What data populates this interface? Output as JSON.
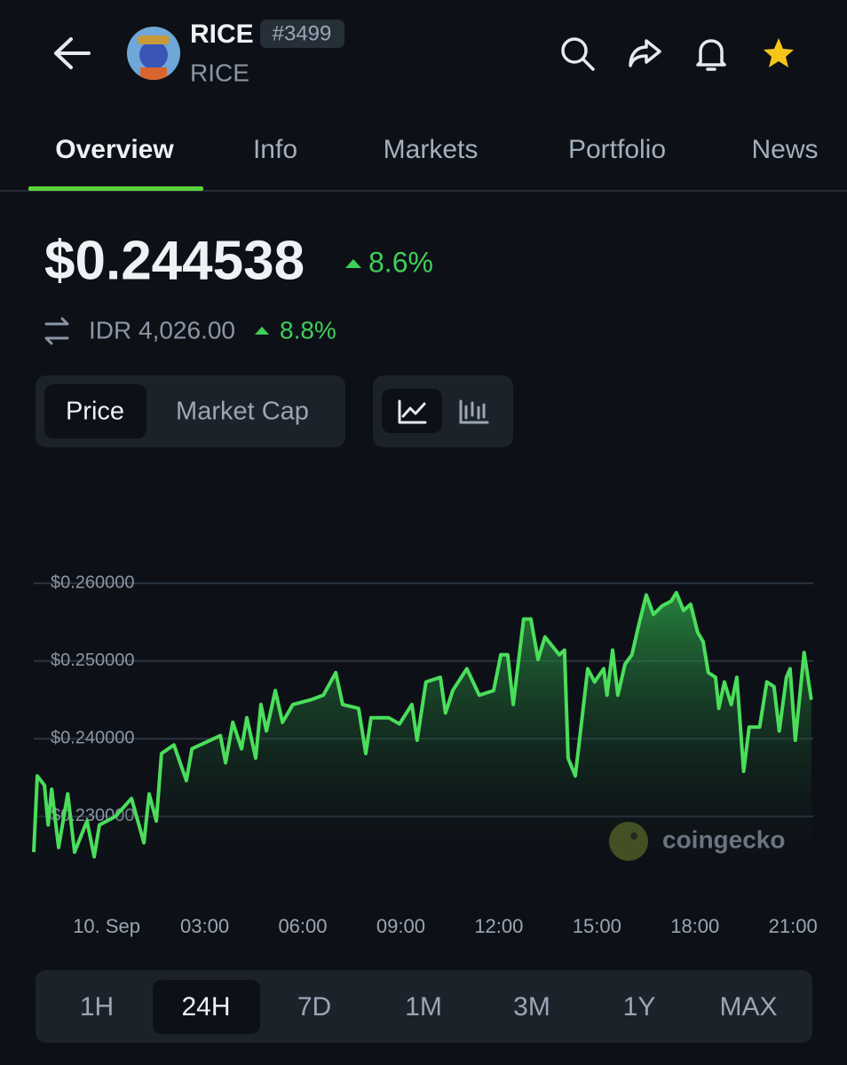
{
  "header": {
    "title": "RICE",
    "rank": "#3499",
    "symbol": "RICE"
  },
  "tabs": [
    "Overview",
    "Info",
    "Markets",
    "Portfolio",
    "News"
  ],
  "price": {
    "usd": "$0.244538",
    "usd_change": "8.6%",
    "local": "IDR 4,026.00",
    "local_change": "8.8%"
  },
  "chart_toggle": [
    "Price",
    "Market Cap"
  ],
  "watermark": "coingecko",
  "ranges": [
    "1H",
    "24H",
    "7D",
    "1M",
    "3M",
    "1Y",
    "MAX"
  ],
  "chart_data": {
    "type": "line",
    "color": "#4ade5a",
    "grid": true,
    "xlim": [
      -2.23,
      21.62
    ],
    "ylim": [
      0.2245,
      0.263
    ],
    "xticks": [
      {
        "value": 0,
        "label": "10. Sep"
      },
      {
        "value": 3,
        "label": "03:00"
      },
      {
        "value": 6,
        "label": "06:00"
      },
      {
        "value": 9,
        "label": "09:00"
      },
      {
        "value": 12,
        "label": "12:00"
      },
      {
        "value": 15,
        "label": "15:00"
      },
      {
        "value": 18,
        "label": "18:00"
      },
      {
        "value": 21,
        "label": "21:00"
      }
    ],
    "yticks": [
      {
        "value": 0.23,
        "label": "$0.230000"
      },
      {
        "value": 0.24,
        "label": "$0.240000"
      },
      {
        "value": 0.25,
        "label": "$0.250000"
      },
      {
        "value": 0.26,
        "label": "$0.260000"
      }
    ],
    "x": [
      -2.23,
      -2.12,
      -1.9,
      -1.79,
      -1.68,
      -1.47,
      -1.19,
      -0.98,
      -0.6,
      -0.38,
      -0.22,
      0.27,
      0.76,
      1.14,
      1.3,
      1.52,
      1.68,
      2.06,
      2.44,
      2.61,
      3.48,
      3.64,
      3.86,
      4.13,
      4.29,
      4.56,
      4.72,
      4.89,
      5.16,
      5.38,
      5.7,
      6.24,
      6.63,
      7.01,
      7.22,
      7.71,
      7.93,
      8.09,
      8.63,
      8.96,
      9.34,
      9.5,
      9.77,
      10.21,
      10.37,
      10.59,
      11.02,
      11.4,
      11.84,
      12.06,
      12.27,
      12.44,
      12.76,
      12.98,
      13.2,
      13.41,
      13.85,
      14.01,
      14.12,
      14.34,
      14.5,
      14.72,
      14.93,
      15.21,
      15.31,
      15.48,
      15.64,
      15.86,
      16.07,
      16.29,
      16.51,
      16.73,
      17.0,
      17.27,
      17.43,
      17.65,
      17.87,
      18.08,
      18.25,
      18.41,
      18.63,
      18.73,
      18.9,
      19.11,
      19.28,
      19.49,
      19.66,
      19.98,
      20.2,
      20.42,
      20.58,
      20.8,
      20.91,
      21.07,
      21.34,
      21.56
    ],
    "values": [
      0.2254,
      0.2352,
      0.234,
      0.2289,
      0.2335,
      0.226,
      0.2329,
      0.2254,
      0.2294,
      0.2248,
      0.2289,
      0.23,
      0.2323,
      0.2266,
      0.2329,
      0.2294,
      0.2381,
      0.2392,
      0.2346,
      0.2387,
      0.2404,
      0.2369,
      0.2421,
      0.2387,
      0.2427,
      0.2375,
      0.2444,
      0.241,
      0.2462,
      0.2421,
      0.2444,
      0.245,
      0.2456,
      0.2485,
      0.2444,
      0.2439,
      0.2381,
      0.2427,
      0.2427,
      0.2419,
      0.2444,
      0.2398,
      0.2473,
      0.2479,
      0.2433,
      0.2462,
      0.249,
      0.2456,
      0.2462,
      0.2508,
      0.2508,
      0.2444,
      0.2554,
      0.2554,
      0.2502,
      0.2531,
      0.2508,
      0.2514,
      0.2375,
      0.2352,
      0.241,
      0.249,
      0.2473,
      0.249,
      0.2456,
      0.2514,
      0.2456,
      0.2496,
      0.2508,
      0.2548,
      0.2585,
      0.256,
      0.2571,
      0.2577,
      0.2588,
      0.2565,
      0.2573,
      0.2537,
      0.2525,
      0.2485,
      0.2479,
      0.2439,
      0.2473,
      0.2444,
      0.2479,
      0.2358,
      0.2415,
      0.2415,
      0.2473,
      0.2467,
      0.241,
      0.2479,
      0.249,
      0.2398,
      0.2511,
      0.245
    ]
  }
}
